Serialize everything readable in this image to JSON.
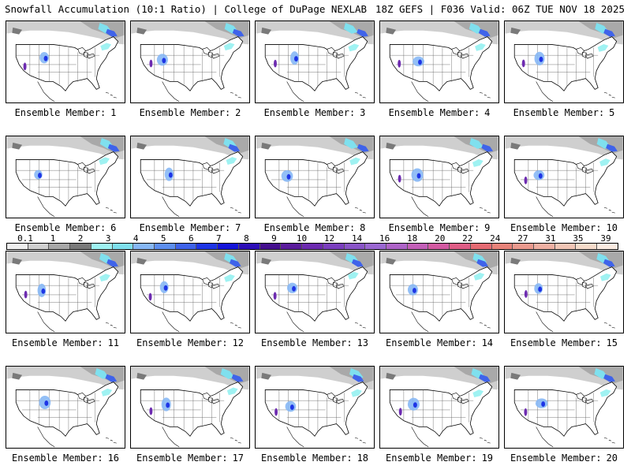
{
  "header": {
    "left_title": "Snowfall Accumulation (10:1 Ratio) | College of DuPage NEXLAB",
    "right_title": "18Z GEFS | F036 Valid: 06Z TUE NOV 18 2025"
  },
  "legend": {
    "labels": [
      "0.1",
      "1",
      "2",
      "3",
      "4",
      "5",
      "6",
      "7",
      "8",
      "9",
      "10",
      "12",
      "14",
      "16",
      "18",
      "20",
      "22",
      "24",
      "27",
      "31",
      "35",
      "39"
    ],
    "colors": [
      "#f0f0f0",
      "#d0d0d0",
      "#a8a8a8",
      "#7a7a7a",
      "#9ff2f2",
      "#7fe0ee",
      "#87b8f5",
      "#5d8ff0",
      "#3f63ea",
      "#1e35e6",
      "#1414d8",
      "#2d0fb8",
      "#45108f",
      "#5a1c9c",
      "#6d2bb0",
      "#7b3fbf",
      "#8a55c8",
      "#9b68d2",
      "#ae64c8",
      "#c35fb8",
      "#d35aa2",
      "#df5d86",
      "#e56b73",
      "#e8837a",
      "#eb9a8e",
      "#efb0a3",
      "#f2c6b6",
      "#f6dccb",
      "#fbece2"
    ]
  },
  "members": [
    {
      "label": "Ensemble Member:",
      "number": "1"
    },
    {
      "label": "Ensemble Member:",
      "number": "2"
    },
    {
      "label": "Ensemble Member:",
      "number": "3"
    },
    {
      "label": "Ensemble Member:",
      "number": "4"
    },
    {
      "label": "Ensemble Member:",
      "number": "5"
    },
    {
      "label": "Ensemble Member:",
      "number": "6"
    },
    {
      "label": "Ensemble Member:",
      "number": "7"
    },
    {
      "label": "Ensemble Member:",
      "number": "8"
    },
    {
      "label": "Ensemble Member:",
      "number": "9"
    },
    {
      "label": "Ensemble Member:",
      "number": "10"
    },
    {
      "label": "Ensemble Member:",
      "number": "11"
    },
    {
      "label": "Ensemble Member:",
      "number": "12"
    },
    {
      "label": "Ensemble Member:",
      "number": "13"
    },
    {
      "label": "Ensemble Member:",
      "number": "14"
    },
    {
      "label": "Ensemble Member:",
      "number": "15"
    },
    {
      "label": "Ensemble Member:",
      "number": "16"
    },
    {
      "label": "Ensemble Member:",
      "number": "17"
    },
    {
      "label": "Ensemble Member:",
      "number": "18"
    },
    {
      "label": "Ensemble Member:",
      "number": "19"
    },
    {
      "label": "Ensemble Member:",
      "number": "20"
    }
  ]
}
